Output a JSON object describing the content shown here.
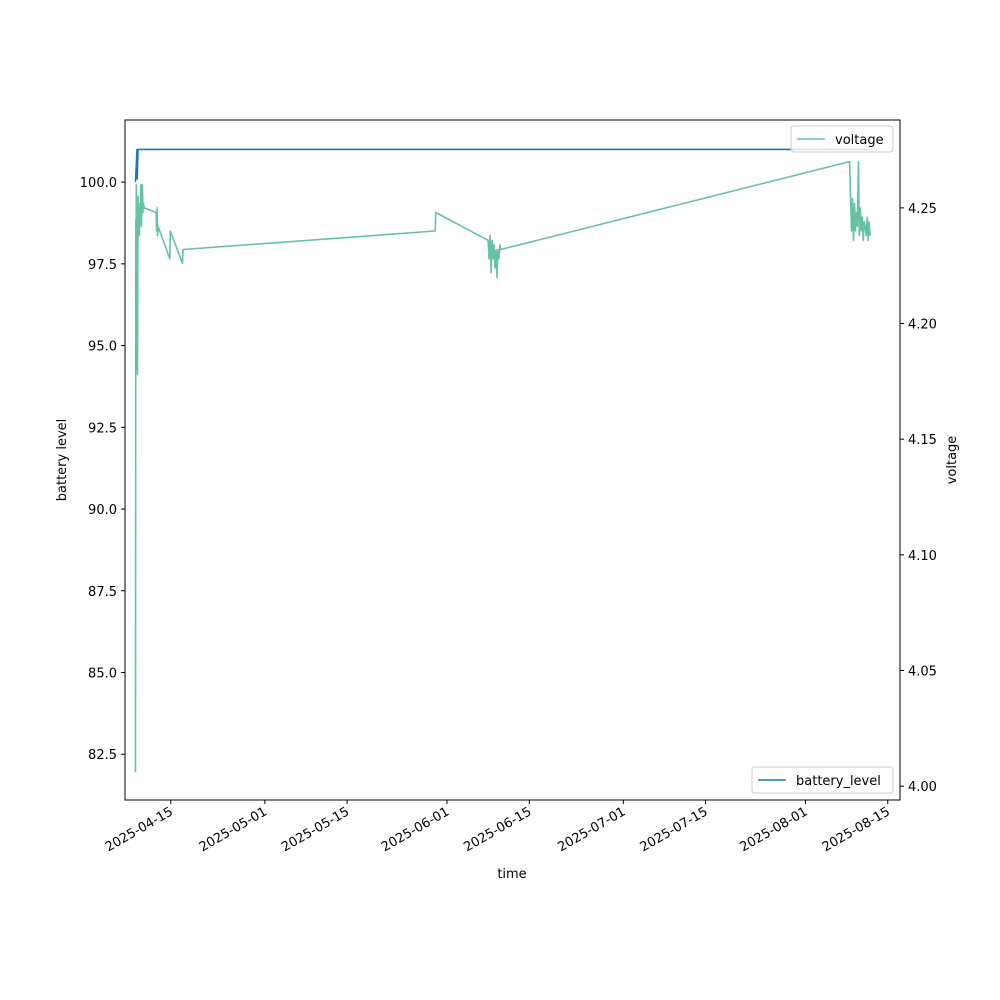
{
  "chart_data": {
    "type": "line",
    "xlabel": "time",
    "ylabel_left": "battery level",
    "ylabel_right": "voltage",
    "x_ticks": [
      "2025-04-15",
      "2025-05-01",
      "2025-05-15",
      "2025-06-01",
      "2025-06-15",
      "2025-07-01",
      "2025-07-15",
      "2025-08-01",
      "2025-08-15"
    ],
    "xlim": [
      "2025-04-07T05:00",
      "2025-08-17T02:00"
    ],
    "y_left_ticks": [
      "82.5",
      "85.0",
      "87.5",
      "90.0",
      "92.5",
      "95.0",
      "97.5",
      "100.0"
    ],
    "ylim_left": [
      81.1,
      101.9
    ],
    "y_right_ticks": [
      "4.00",
      "4.05",
      "4.10",
      "4.15",
      "4.20",
      "4.25"
    ],
    "ylim_right": [
      3.994,
      4.288
    ],
    "legend_left": "bottom-right",
    "legend_right": "top-right",
    "colors": {
      "battery_level": "#1f77b4",
      "voltage": "#66c2a5"
    },
    "series": [
      {
        "name": "battery_level",
        "axis": "left",
        "x": [
          "2025-04-09T00:00",
          "2025-04-09T06:00",
          "2025-04-09T07:00",
          "2025-04-09T10:00",
          "2025-08-12T00:00"
        ],
        "y": [
          100,
          101,
          100.1,
          101,
          101
        ]
      },
      {
        "name": "voltage",
        "axis": "right",
        "x": [
          "2025-04-09T00:00",
          "2025-04-09T01:00",
          "2025-04-09T02:00",
          "2025-04-09T03:00",
          "2025-04-09T04:00",
          "2025-04-09T06:00",
          "2025-04-09T08:00",
          "2025-04-09T10:00",
          "2025-04-09T12:00",
          "2025-04-09T14:00",
          "2025-04-09T16:00",
          "2025-04-09T18:00",
          "2025-04-09T20:00",
          "2025-04-09T22:00",
          "2025-04-10T00:00",
          "2025-04-10T02:00",
          "2025-04-10T04:00",
          "2025-04-10T06:00",
          "2025-04-10T08:00",
          "2025-04-10T12:00",
          "2025-04-12T12:00",
          "2025-04-12T14:00",
          "2025-04-12T16:00",
          "2025-04-12T18:00",
          "2025-04-12T20:00",
          "2025-04-14T20:00",
          "2025-04-14T22:00",
          "2025-04-17T00:00",
          "2025-04-17T02:00",
          "2025-05-30T00:00",
          "2025-05-30T02:00",
          "2025-06-08T00:00",
          "2025-06-08T04:00",
          "2025-06-08T08:00",
          "2025-06-08T12:00",
          "2025-06-08T16:00",
          "2025-06-08T20:00",
          "2025-06-09T00:00",
          "2025-06-09T04:00",
          "2025-06-09T08:00",
          "2025-06-09T12:00",
          "2025-06-09T16:00",
          "2025-06-09T20:00",
          "2025-06-10T00:00",
          "2025-06-10T04:00",
          "2025-08-08T12:00",
          "2025-08-08T20:00",
          "2025-08-09T00:00",
          "2025-08-09T04:00",
          "2025-08-09T08:00",
          "2025-08-09T12:00",
          "2025-08-09T16:00",
          "2025-08-09T20:00",
          "2025-08-10T00:00",
          "2025-08-10T04:00",
          "2025-08-10T08:00",
          "2025-08-10T12:00",
          "2025-08-10T16:00",
          "2025-08-10T20:00",
          "2025-08-11T00:00",
          "2025-08-11T04:00",
          "2025-08-11T08:00",
          "2025-08-11T12:00",
          "2025-08-11T16:00",
          "2025-08-11T20:00",
          "2025-08-12T00:00"
        ],
        "y": [
          4.006,
          4.245,
          4.18,
          4.26,
          4.19,
          4.25,
          4.178,
          4.255,
          4.24,
          4.25,
          4.238,
          4.252,
          4.245,
          4.26,
          4.242,
          4.25,
          4.26,
          4.248,
          4.252,
          4.25,
          4.248,
          4.24,
          4.25,
          4.238,
          4.242,
          4.228,
          4.24,
          4.226,
          4.232,
          4.24,
          4.248,
          4.236,
          4.228,
          4.238,
          4.222,
          4.236,
          4.228,
          4.234,
          4.224,
          4.232,
          4.22,
          4.232,
          4.228,
          4.234,
          4.232,
          4.27,
          4.24,
          4.254,
          4.236,
          4.252,
          4.24,
          4.248,
          4.242,
          4.27,
          4.238,
          4.25,
          4.24,
          4.246,
          4.236,
          4.244,
          4.242,
          4.238,
          4.246,
          4.236,
          4.244,
          4.238
        ]
      }
    ]
  }
}
